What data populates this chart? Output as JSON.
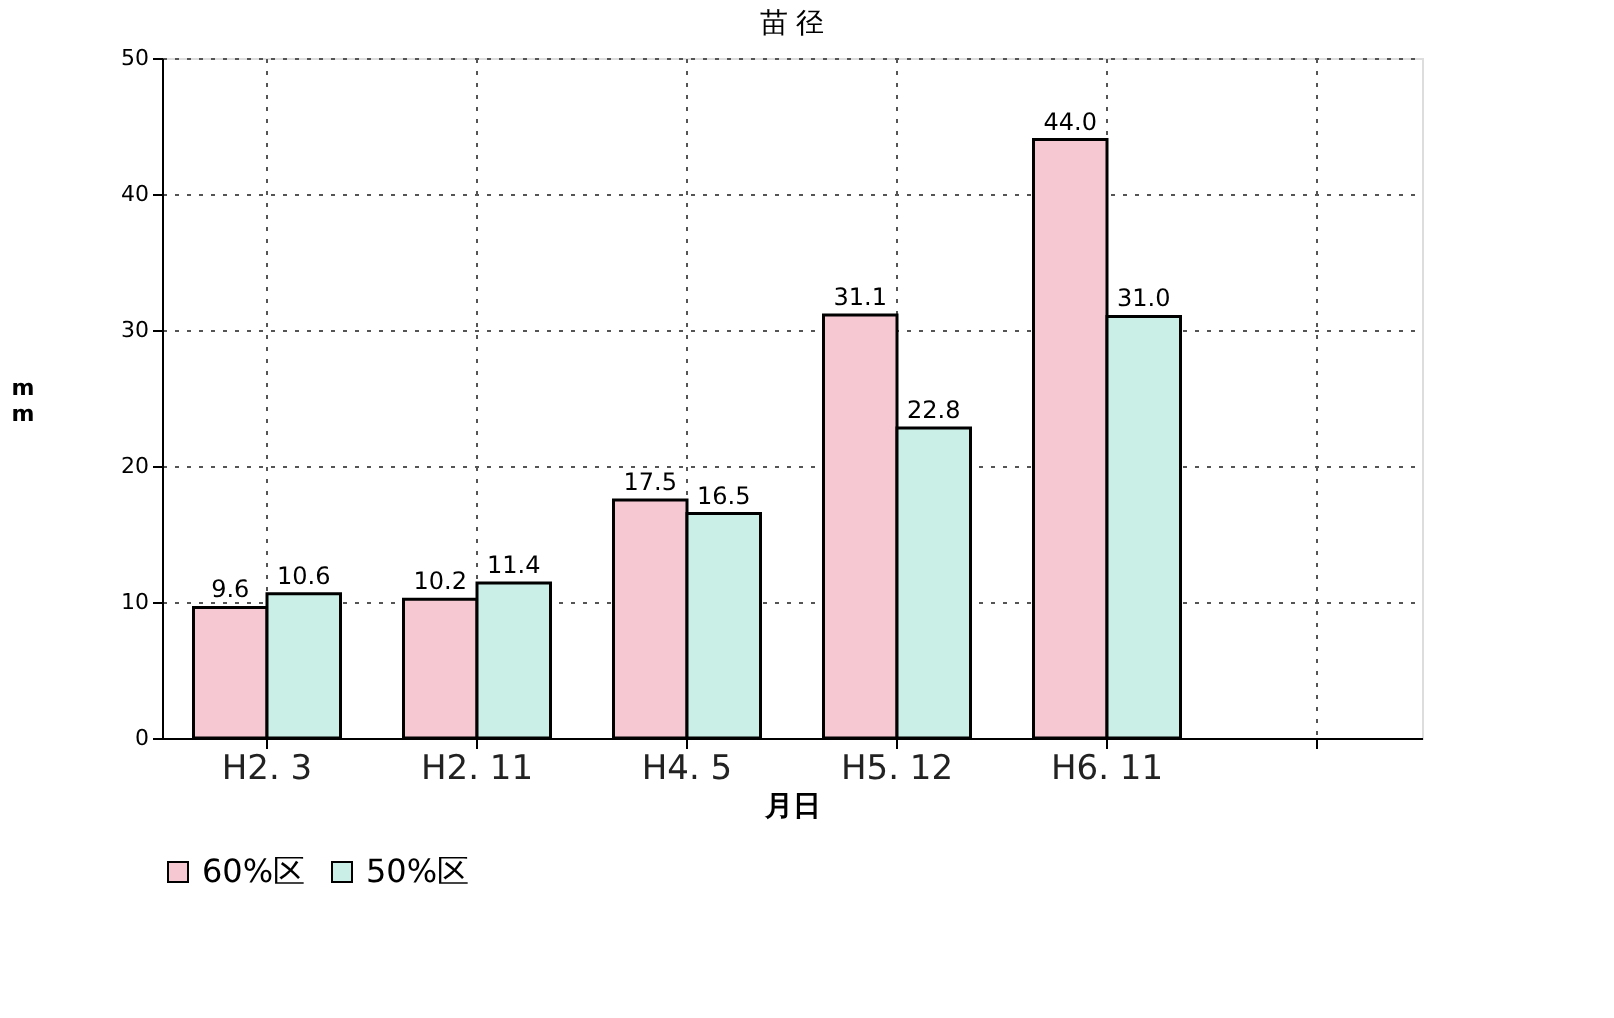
{
  "chart_data": {
    "type": "bar",
    "title": "苗 径",
    "xlabel": "月日",
    "ylabel": "mm",
    "categories": [
      "H2. 3",
      "H2. 11",
      "H4. 5",
      "H5. 12",
      "H6. 11",
      null
    ],
    "series": [
      {
        "name": "60%区",
        "color": "#f5c8d2",
        "values": [
          9.6,
          10.2,
          17.5,
          31.1,
          44.0,
          null
        ],
        "value_labels": [
          "9.6",
          "10.2",
          "17.5",
          "31.1",
          "44.0",
          null
        ]
      },
      {
        "name": "50%区",
        "color": "#c9efe6",
        "values": [
          10.6,
          11.4,
          16.5,
          22.8,
          31.0,
          null
        ],
        "value_labels": [
          "10.6",
          "11.4",
          "16.5",
          "22.8",
          "31.0",
          null
        ]
      }
    ],
    "ylim": [
      0,
      50
    ],
    "yticks": [
      0,
      10,
      20,
      30,
      40,
      50
    ],
    "grid": true,
    "legend": "bottom"
  }
}
